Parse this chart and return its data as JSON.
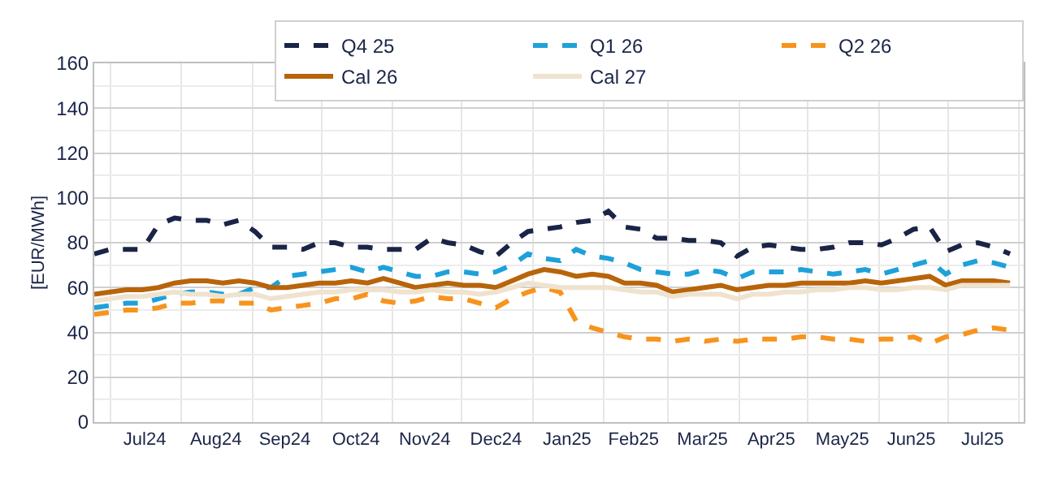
{
  "chart_data": {
    "type": "line",
    "ylabel": "[EUR/MWh]",
    "grid": true,
    "legend": "top right",
    "marker": "none",
    "x": [
      "2024-06-24",
      "2024-07-01",
      "2024-07-08",
      "2024-07-15",
      "2024-07-22",
      "2024-07-29",
      "2024-08-05",
      "2024-08-12",
      "2024-08-19",
      "2024-08-26",
      "2024-09-02",
      "2024-09-09",
      "2024-09-16",
      "2024-09-23",
      "2024-09-30",
      "2024-10-07",
      "2024-10-14",
      "2024-10-21",
      "2024-10-28",
      "2024-11-04",
      "2024-11-11",
      "2024-11-18",
      "2024-11-25",
      "2024-12-02",
      "2024-12-09",
      "2024-12-16",
      "2024-12-23",
      "2024-12-30",
      "2025-01-06",
      "2025-01-13",
      "2025-01-20",
      "2025-01-27",
      "2025-02-03",
      "2025-02-10",
      "2025-02-17",
      "2025-02-24",
      "2025-03-03",
      "2025-03-10",
      "2025-03-17",
      "2025-03-24",
      "2025-03-31",
      "2025-04-07",
      "2025-04-14",
      "2025-04-21",
      "2025-04-28",
      "2025-05-05",
      "2025-05-12",
      "2025-05-19",
      "2025-05-26",
      "2025-06-02",
      "2025-06-09",
      "2025-06-16",
      "2025-06-23",
      "2025-06-30",
      "2025-07-07",
      "2025-07-14",
      "2025-07-21",
      "2025-07-28"
    ],
    "xlim": [
      "2024-06-24",
      "2025-08-03"
    ],
    "xticks": [
      {
        "value": "2024-07-16",
        "label": "Jul24"
      },
      {
        "value": "2024-08-16",
        "label": "Aug24"
      },
      {
        "value": "2024-09-15",
        "label": "Sep24"
      },
      {
        "value": "2024-10-16",
        "label": "Oct24"
      },
      {
        "value": "2024-11-15",
        "label": "Nov24"
      },
      {
        "value": "2024-12-16",
        "label": "Dec24"
      },
      {
        "value": "2025-01-16",
        "label": "Jan25"
      },
      {
        "value": "2025-02-14",
        "label": "Feb25"
      },
      {
        "value": "2025-03-16",
        "label": "Mar25"
      },
      {
        "value": "2025-04-15",
        "label": "Apr25"
      },
      {
        "value": "2025-05-16",
        "label": "May25"
      },
      {
        "value": "2025-06-15",
        "label": "Jun25"
      },
      {
        "value": "2025-07-16",
        "label": "Jul25"
      }
    ],
    "ylim": [
      0,
      160
    ],
    "yticks": [
      0,
      20,
      40,
      60,
      80,
      100,
      120,
      140,
      160
    ],
    "series": [
      {
        "name": "Q4 25",
        "color": "#1a2447",
        "line_style": "dashed",
        "values": [
          75,
          77,
          77,
          77,
          88,
          91,
          90,
          90,
          88,
          90,
          85,
          78,
          78,
          77,
          80,
          80,
          78,
          78,
          77,
          77,
          77,
          82,
          80,
          79,
          76,
          74,
          80,
          85,
          86,
          87,
          89,
          90,
          94,
          87,
          86,
          82,
          82,
          81,
          81,
          80,
          74,
          78,
          79,
          78,
          77,
          77,
          78,
          80,
          80,
          79,
          82,
          86,
          87,
          76,
          79,
          80,
          78,
          75
        ]
      },
      {
        "name": "Q1 26",
        "color": "#1ea1d9",
        "line_style": "dashed",
        "values": [
          51,
          52,
          53,
          53,
          55,
          57,
          58,
          58,
          57,
          57,
          60,
          60,
          65,
          66,
          67,
          68,
          69,
          67,
          69,
          67,
          65,
          65,
          67,
          67,
          66,
          67,
          70,
          75,
          73,
          72,
          77,
          74,
          73,
          71,
          68,
          67,
          66,
          66,
          68,
          67,
          64,
          67,
          67,
          67,
          68,
          67,
          66,
          67,
          68,
          66,
          68,
          70,
          72,
          66,
          70,
          72,
          71,
          69
        ]
      },
      {
        "name": "Q2 26",
        "color": "#f7941d",
        "line_style": "dashed",
        "values": [
          48,
          49,
          50,
          50,
          51,
          53,
          53,
          54,
          54,
          53,
          53,
          50,
          51,
          52,
          53,
          55,
          55,
          57,
          54,
          53,
          54,
          56,
          55,
          55,
          53,
          51,
          55,
          58,
          60,
          58,
          45,
          42,
          40,
          38,
          37,
          37,
          36,
          37,
          36,
          37,
          36,
          37,
          37,
          37,
          38,
          38,
          37,
          37,
          36,
          37,
          37,
          38,
          35,
          38,
          39,
          41,
          42,
          41
        ]
      },
      {
        "name": "Cal 26",
        "color": "#b8640a",
        "line_style": "solid",
        "values": [
          57,
          58,
          59,
          59,
          60,
          62,
          63,
          63,
          62,
          63,
          62,
          60,
          60,
          61,
          62,
          62,
          63,
          62,
          64,
          62,
          60,
          61,
          62,
          61,
          61,
          60,
          63,
          66,
          68,
          67,
          65,
          66,
          65,
          62,
          62,
          61,
          58,
          59,
          60,
          61,
          59,
          60,
          61,
          61,
          62,
          62,
          62,
          62,
          63,
          62,
          63,
          64,
          65,
          61,
          63,
          63,
          63,
          62
        ]
      },
      {
        "name": "Cal 27",
        "color": "#efe3cf",
        "line_style": "solid",
        "values": [
          54,
          55,
          56,
          56,
          57,
          58,
          57,
          57,
          56,
          57,
          57,
          55,
          56,
          57,
          58,
          58,
          59,
          59,
          59,
          58,
          58,
          59,
          58,
          58,
          57,
          58,
          60,
          62,
          61,
          60,
          60,
          60,
          60,
          59,
          58,
          58,
          56,
          57,
          57,
          57,
          55,
          57,
          57,
          58,
          58,
          59,
          59,
          60,
          60,
          59,
          59,
          60,
          60,
          59,
          61,
          61,
          61,
          61
        ]
      }
    ]
  }
}
